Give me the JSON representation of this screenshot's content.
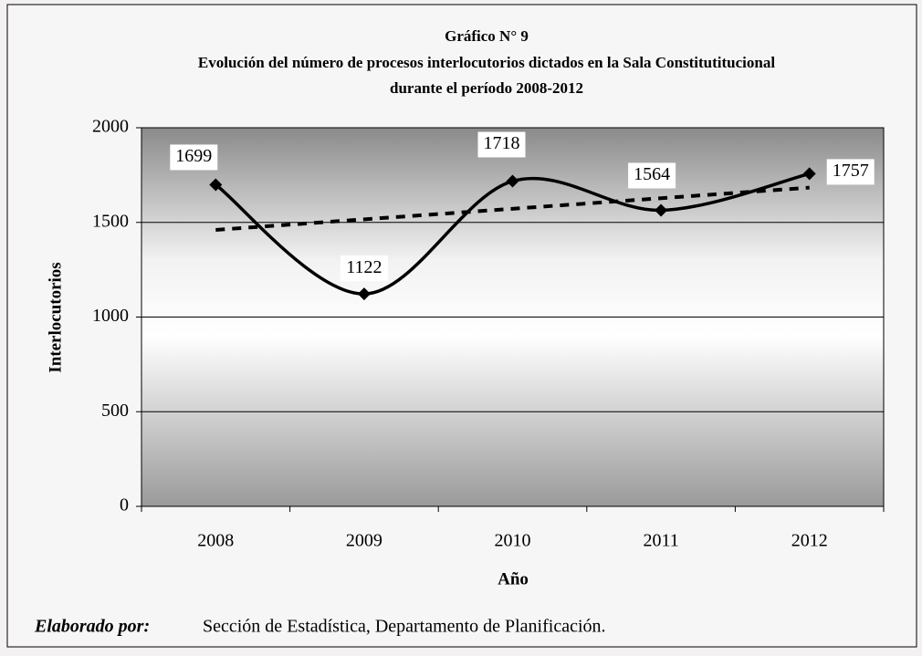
{
  "chart_data": {
    "type": "line",
    "title": [
      "Gráfico N° 9",
      "Evolución del número de procesos interlocutorios dictados en la Sala Constitutitucional",
      "durante el período 2008-2012"
    ],
    "x_label": "Año",
    "y_label": "Interlocutorios",
    "categories": [
      "2008",
      "2009",
      "2010",
      "2011",
      "2012"
    ],
    "values": [
      1699,
      1122,
      1718,
      1564,
      1757
    ],
    "color": "#000000",
    "smooth": true,
    "trendline": "linear",
    "grid": true,
    "ylim": [
      0,
      2000
    ],
    "yticks": [
      0,
      500,
      1000,
      1500,
      2000
    ],
    "source_label": "Elaborado por:",
    "source": "Sección de Estadística, Departamento de Planificación."
  }
}
